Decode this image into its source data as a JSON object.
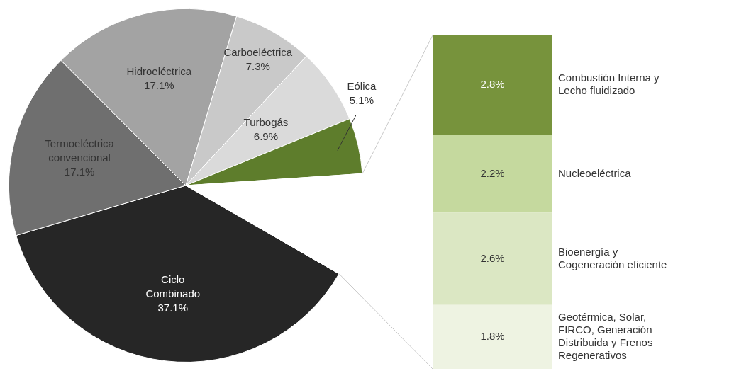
{
  "chart_data": [
    {
      "type": "pie",
      "categories": [
        "Ciclo Combinado",
        "Termoeléctrica convencional",
        "Hidroeléctrica",
        "Carboeléctrica",
        "Turbogás",
        "Eólica",
        null
      ],
      "values": [
        37.1,
        17.1,
        17.1,
        7.3,
        6.9,
        5.1,
        9.4
      ],
      "colors": [
        "#262626",
        "#6f6f6f",
        "#a3a3a3",
        "#c9c9c9",
        "#dadada",
        "#5e7d2c",
        "#ffffff"
      ],
      "value_labels": [
        "37.1%",
        "17.1%",
        "17.1%",
        "7.3%",
        "6.9%",
        "5.1%",
        null
      ]
    },
    {
      "type": "bar",
      "stacked": true,
      "categories": [
        null
      ],
      "tick_labels": false,
      "series": [
        {
          "name": "Geotérmica, Solar, FIRCO, Generación Distribuida y Frenos Regenerativos",
          "color": "#eef3e2",
          "values": [
            1.8
          ],
          "value_labels": [
            "1.8%"
          ]
        },
        {
          "name": "Bioenergía y Cogeneración eficiente",
          "color": "#dbe7c3",
          "values": [
            2.6
          ],
          "value_labels": [
            "2.6%"
          ]
        },
        {
          "name": "Nucleoeléctrica",
          "color": "#c5d99e",
          "values": [
            2.2
          ],
          "value_labels": [
            "2.2%"
          ]
        },
        {
          "name": "Combustión Interna y Lecho fluidizado",
          "color": "#77933c",
          "values": [
            2.8
          ],
          "value_labels": [
            "2.8%"
          ]
        }
      ]
    }
  ]
}
